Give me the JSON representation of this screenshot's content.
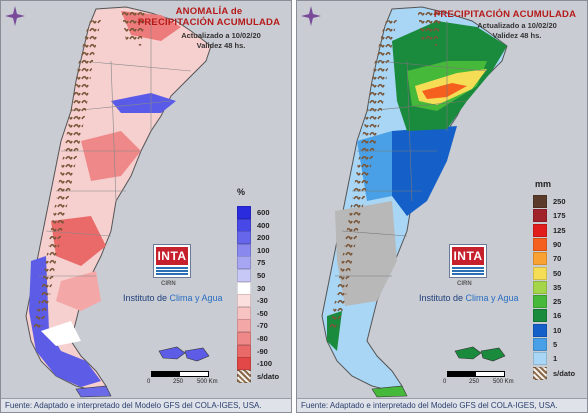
{
  "left_panel": {
    "title_line1": "ANOMALÍA de",
    "title_line2": "PRECIPITACIÓN ACUMULADA",
    "updated": "Actualizado a 10/02/20",
    "validity": "Validez 48 hs.",
    "legend_unit": "%",
    "legend": [
      {
        "label": "600",
        "color": "#2a2adf"
      },
      {
        "label": "400",
        "color": "#4848e6"
      },
      {
        "label": "200",
        "color": "#6666ea"
      },
      {
        "label": "100",
        "color": "#8888ee"
      },
      {
        "label": "75",
        "color": "#a6a6f2"
      },
      {
        "label": "50",
        "color": "#c8c8f7"
      },
      {
        "label": "30",
        "color": "#ffffff"
      },
      {
        "label": "-30",
        "color": "#fbdede"
      },
      {
        "label": "-50",
        "color": "#f8c3c3"
      },
      {
        "label": "-70",
        "color": "#f4a7a7"
      },
      {
        "label": "-80",
        "color": "#ef8888"
      },
      {
        "label": "-90",
        "color": "#ea6a6a"
      },
      {
        "label": "-100",
        "color": "#e24848"
      },
      {
        "label": "s/dato",
        "color": "#8a6a4a"
      }
    ],
    "institute_prefix": "Instituto de ",
    "institute_highlight": "Clima y Agua",
    "logo_text": "INTA",
    "cirn": "CIRN",
    "scale": [
      "0",
      "250",
      "500 Km"
    ],
    "footer": "Fuente: Adaptado e interpretado del Modelo GFS del COLA-IGES, USA."
  },
  "right_panel": {
    "title_line1": "PRECIPITACIÓN ACUMULADA",
    "updated": "Actualizado a 10/02/20",
    "validity": "Validez 48 hs.",
    "legend_unit": "mm",
    "legend": [
      {
        "label": "250",
        "color": "#5a3a2a"
      },
      {
        "label": "175",
        "color": "#a0232b"
      },
      {
        "label": "125",
        "color": "#e21d1d"
      },
      {
        "label": "90",
        "color": "#f5601e"
      },
      {
        "label": "70",
        "color": "#f9a233"
      },
      {
        "label": "50",
        "color": "#f5dd55"
      },
      {
        "label": "35",
        "color": "#a5d64a"
      },
      {
        "label": "25",
        "color": "#46b83a"
      },
      {
        "label": "16",
        "color": "#1a8a3c"
      },
      {
        "label": "10",
        "color": "#1560c8"
      },
      {
        "label": "5",
        "color": "#4aa0e6"
      },
      {
        "label": "1",
        "color": "#a9d6f5"
      },
      {
        "label": "s/dato",
        "color": "#8a6a4a"
      }
    ],
    "institute_prefix": "Instituto de ",
    "institute_highlight": "Clima y Agua",
    "logo_text": "INTA",
    "cirn": "CIRN",
    "scale": [
      "0",
      "250",
      "500 Km"
    ],
    "footer": "Fuente: Adaptado e interpretado del Modelo GFS del COLA-IGES, USA."
  },
  "colors": {
    "background": "#c9ccd3",
    "title_red": "#b51a1a",
    "country_outline": "#555555"
  }
}
